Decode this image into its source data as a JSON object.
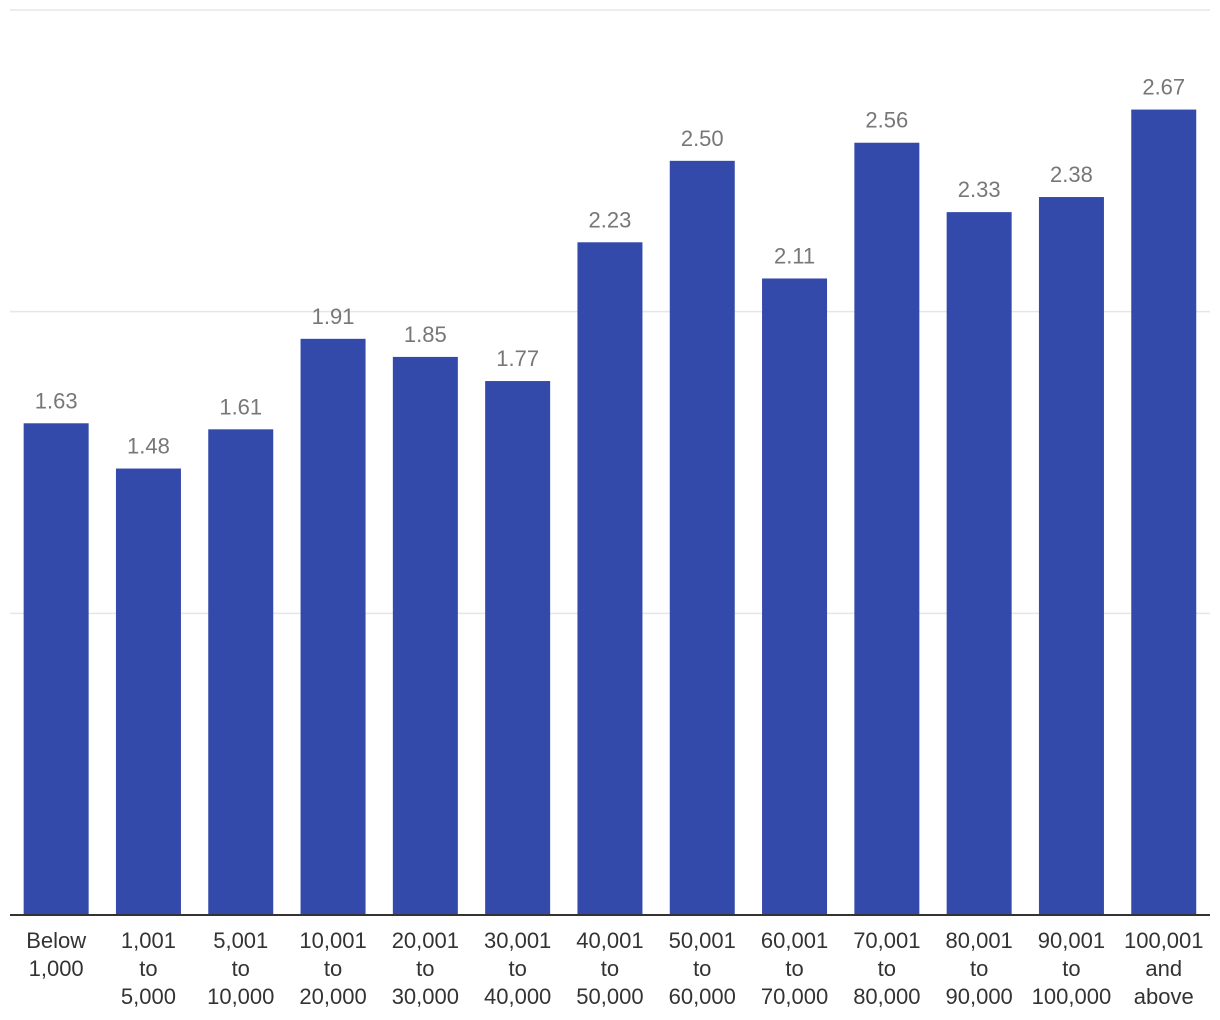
{
  "chart_data": {
    "type": "bar",
    "categories": [
      [
        "Below",
        "1,000"
      ],
      [
        "1,001",
        "to",
        "5,000"
      ],
      [
        "5,001",
        "to",
        "10,000"
      ],
      [
        "10,001",
        "to",
        "20,000"
      ],
      [
        "20,001",
        "to",
        "30,000"
      ],
      [
        "30,001",
        "to",
        "40,000"
      ],
      [
        "40,001",
        "to",
        "50,000"
      ],
      [
        "50,001",
        "to",
        "60,000"
      ],
      [
        "60,001",
        "to",
        "70,000"
      ],
      [
        "70,001",
        "to",
        "80,000"
      ],
      [
        "80,001",
        "to",
        "90,000"
      ],
      [
        "90,001",
        "to",
        "100,000"
      ],
      [
        "100,001",
        "and",
        "above"
      ]
    ],
    "values": [
      1.63,
      1.48,
      1.61,
      1.91,
      1.85,
      1.77,
      2.23,
      2.5,
      2.11,
      2.56,
      2.33,
      2.38,
      2.67
    ],
    "value_labels": [
      "1.63",
      "1.48",
      "1.61",
      "1.91",
      "1.85",
      "1.77",
      "2.23",
      "2.50",
      "2.11",
      "2.56",
      "2.33",
      "2.38",
      "2.67"
    ],
    "ylim": [
      0,
      3
    ],
    "gridlines": [
      1,
      2,
      3
    ],
    "grid": true,
    "legend": "none",
    "bar_color": "#334aab",
    "value_label_color": "#777777",
    "tick_label_color": "#333333"
  }
}
